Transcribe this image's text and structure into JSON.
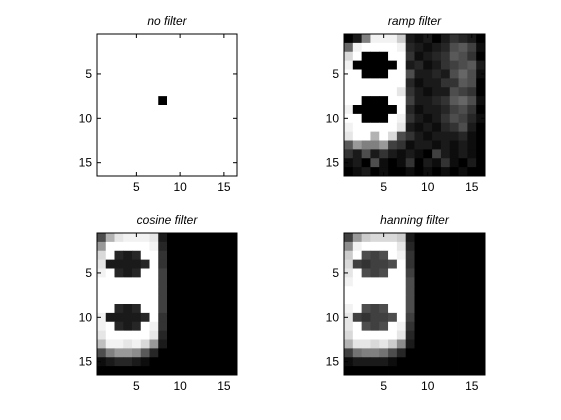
{
  "chart_data": [
    {
      "type": "heatmap",
      "title": "no filter",
      "xticks": [
        "5",
        "10",
        "15"
      ],
      "yticks": [
        "5",
        "10",
        "15"
      ],
      "xlim": [
        0.5,
        16.5
      ],
      "ylim": [
        0.5,
        16.5
      ],
      "colormap": "gray",
      "z": [
        [
          1,
          1,
          1,
          1,
          1,
          1,
          1,
          1,
          1,
          1,
          1,
          1,
          1,
          1,
          1,
          1
        ],
        [
          1,
          1,
          1,
          1,
          1,
          1,
          1,
          1,
          1,
          1,
          1,
          1,
          1,
          1,
          1,
          1
        ],
        [
          1,
          1,
          1,
          1,
          1,
          1,
          1,
          1,
          1,
          1,
          1,
          1,
          1,
          1,
          1,
          1
        ],
        [
          1,
          1,
          1,
          1,
          1,
          1,
          1,
          1,
          1,
          1,
          1,
          1,
          1,
          1,
          1,
          1
        ],
        [
          1,
          1,
          1,
          1,
          1,
          1,
          1,
          1,
          1,
          1,
          1,
          1,
          1,
          1,
          1,
          1
        ],
        [
          1,
          1,
          1,
          1,
          1,
          1,
          1,
          1,
          1,
          1,
          1,
          1,
          1,
          1,
          1,
          1
        ],
        [
          1,
          1,
          1,
          1,
          1,
          1,
          1,
          1,
          1,
          1,
          1,
          1,
          1,
          1,
          1,
          1
        ],
        [
          1,
          1,
          1,
          1,
          1,
          1,
          1,
          0,
          1,
          1,
          1,
          1,
          1,
          1,
          1,
          1
        ],
        [
          1,
          1,
          1,
          1,
          1,
          1,
          1,
          1,
          1,
          1,
          1,
          1,
          1,
          1,
          1,
          1
        ],
        [
          1,
          1,
          1,
          1,
          1,
          1,
          1,
          1,
          1,
          1,
          1,
          1,
          1,
          1,
          1,
          1
        ],
        [
          1,
          1,
          1,
          1,
          1,
          1,
          1,
          1,
          1,
          1,
          1,
          1,
          1,
          1,
          1,
          1
        ],
        [
          1,
          1,
          1,
          1,
          1,
          1,
          1,
          1,
          1,
          1,
          1,
          1,
          1,
          1,
          1,
          1
        ],
        [
          1,
          1,
          1,
          1,
          1,
          1,
          1,
          1,
          1,
          1,
          1,
          1,
          1,
          1,
          1,
          1
        ],
        [
          1,
          1,
          1,
          1,
          1,
          1,
          1,
          1,
          1,
          1,
          1,
          1,
          1,
          1,
          1,
          1
        ],
        [
          1,
          1,
          1,
          1,
          1,
          1,
          1,
          1,
          1,
          1,
          1,
          1,
          1,
          1,
          1,
          1
        ],
        [
          1,
          1,
          1,
          1,
          1,
          1,
          1,
          1,
          1,
          1,
          1,
          1,
          1,
          1,
          1,
          1
        ]
      ]
    },
    {
      "type": "heatmap",
      "title": "ramp filter",
      "xticks": [
        "5",
        "10",
        "15"
      ],
      "yticks": [
        "5",
        "10",
        "15"
      ],
      "xlim": [
        0.5,
        16.5
      ],
      "ylim": [
        0.5,
        16.5
      ],
      "colormap": "gray",
      "z": [
        [
          0.0,
          0.1,
          0.5,
          0.95,
          0.95,
          0.95,
          0.8,
          0.1,
          0.05,
          0.1,
          0.0,
          0.1,
          0.2,
          0.15,
          0.1,
          0.0
        ],
        [
          0.4,
          0.95,
          1,
          1,
          1,
          1,
          0.95,
          0.15,
          0.1,
          0.05,
          0.1,
          0.15,
          0.3,
          0.35,
          0.25,
          0.05
        ],
        [
          0.85,
          1,
          0,
          0,
          0,
          1,
          1,
          0.2,
          0.05,
          0.1,
          0.15,
          0.2,
          0.35,
          0.3,
          0.2,
          0.0
        ],
        [
          0.95,
          0,
          0,
          0,
          0,
          0,
          1,
          0.1,
          0.15,
          0.05,
          0.1,
          0.2,
          0.25,
          0.3,
          0.35,
          0.1
        ],
        [
          1,
          1,
          0,
          0,
          0,
          1,
          1,
          0.3,
          0.1,
          0.1,
          0.15,
          0.1,
          0.3,
          0.4,
          0.3,
          0.05
        ],
        [
          1,
          1,
          1,
          1,
          1,
          1,
          1,
          0.15,
          0.05,
          0.1,
          0.1,
          0.2,
          0.2,
          0.35,
          0.3,
          0.0
        ],
        [
          1,
          1,
          1,
          1,
          1,
          1,
          0.9,
          0.2,
          0.1,
          0.05,
          0.1,
          0.1,
          0.3,
          0.25,
          0.2,
          0.0
        ],
        [
          1,
          1,
          0,
          0,
          0,
          1,
          1,
          0.25,
          0.1,
          0.1,
          0.15,
          0.2,
          0.35,
          0.4,
          0.3,
          0.05
        ],
        [
          0.95,
          0,
          0,
          0,
          0,
          0,
          1,
          0.15,
          0.05,
          0.1,
          0.1,
          0.15,
          0.25,
          0.3,
          0.2,
          0.0
        ],
        [
          1,
          1,
          0,
          0,
          0,
          1,
          0.95,
          0.2,
          0.1,
          0.05,
          0.1,
          0.2,
          0.3,
          0.25,
          0.15,
          0.05
        ],
        [
          0.95,
          1,
          1,
          1,
          1,
          1,
          0.9,
          0.1,
          0.05,
          0.1,
          0.05,
          0.15,
          0.2,
          0.3,
          0.1,
          0.0
        ],
        [
          0.9,
          1,
          1,
          0.7,
          1,
          0.85,
          0.3,
          0.2,
          0.1,
          0.05,
          0.1,
          0.1,
          0.1,
          0.15,
          0.05,
          0.0
        ],
        [
          0.35,
          0.6,
          0.5,
          0.5,
          0.6,
          0.25,
          0.2,
          0.05,
          0.1,
          0.1,
          0.05,
          0.1,
          0.05,
          0.1,
          0.05,
          0.0
        ],
        [
          0.2,
          0.1,
          0.3,
          0.1,
          0.2,
          0.1,
          0.05,
          0.1,
          0.05,
          0.0,
          0.25,
          0.1,
          0.05,
          0.1,
          0.05,
          0.0
        ],
        [
          0.05,
          0.1,
          0.0,
          0.3,
          0.05,
          0.0,
          0.05,
          0.2,
          0.0,
          0.1,
          0.05,
          0.2,
          0.05,
          0.0,
          0.1,
          0.0
        ],
        [
          0.0,
          0.05,
          0.1,
          0.0,
          0.05,
          0.0,
          0.0,
          0.05,
          0.0,
          0.05,
          0.0,
          0.05,
          0.0,
          0.05,
          0.0,
          0.0
        ]
      ]
    },
    {
      "type": "heatmap",
      "title": "cosine filter",
      "xticks": [
        "5",
        "10",
        "15"
      ],
      "yticks": [
        "5",
        "10",
        "15"
      ],
      "xlim": [
        0.5,
        16.5
      ],
      "ylim": [
        0.5,
        16.5
      ],
      "colormap": "gray",
      "z": [
        [
          0.3,
          0.7,
          0.9,
          0.95,
          0.95,
          0.95,
          0.9,
          0.1,
          0,
          0,
          0,
          0,
          0,
          0,
          0,
          0
        ],
        [
          0.6,
          1,
          1,
          1,
          1,
          1,
          0.95,
          0.15,
          0,
          0,
          0,
          0,
          0,
          0,
          0,
          0
        ],
        [
          0.85,
          1,
          0.15,
          0.1,
          0.15,
          1,
          1,
          0.2,
          0,
          0,
          0,
          0,
          0,
          0,
          0,
          0
        ],
        [
          0.9,
          0.1,
          0.1,
          0.1,
          0.1,
          0.15,
          1,
          0.2,
          0,
          0,
          0,
          0,
          0,
          0,
          0,
          0
        ],
        [
          0.95,
          1,
          0.15,
          0.1,
          0.15,
          1,
          1,
          0.25,
          0,
          0,
          0,
          0,
          0,
          0,
          0,
          0
        ],
        [
          1,
          1,
          1,
          1,
          1,
          1,
          1,
          0.25,
          0,
          0,
          0,
          0,
          0,
          0,
          0,
          0
        ],
        [
          1,
          1,
          1,
          1,
          1,
          1,
          1,
          0.25,
          0,
          0,
          0,
          0,
          0,
          0,
          0,
          0
        ],
        [
          1,
          1,
          1,
          1,
          1,
          1,
          1,
          0.25,
          0,
          0,
          0,
          0,
          0,
          0,
          0,
          0
        ],
        [
          1,
          1,
          0.15,
          0.1,
          0.15,
          1,
          1,
          0.25,
          0,
          0,
          0,
          0,
          0,
          0,
          0,
          0
        ],
        [
          0.95,
          0.1,
          0.1,
          0.1,
          0.1,
          0.15,
          1,
          0.2,
          0,
          0,
          0,
          0,
          0,
          0,
          0,
          0
        ],
        [
          0.95,
          1,
          0.15,
          0.1,
          0.15,
          1,
          0.95,
          0.2,
          0,
          0,
          0,
          0,
          0,
          0,
          0,
          0
        ],
        [
          0.9,
          1,
          1,
          1,
          1,
          1,
          0.9,
          0.15,
          0,
          0,
          0,
          0,
          0,
          0,
          0,
          0
        ],
        [
          0.75,
          0.95,
          0.95,
          0.9,
          0.95,
          0.85,
          0.6,
          0.1,
          0,
          0,
          0,
          0,
          0,
          0,
          0,
          0
        ],
        [
          0.3,
          0.5,
          0.6,
          0.6,
          0.55,
          0.35,
          0.15,
          0,
          0,
          0,
          0,
          0,
          0,
          0,
          0,
          0
        ],
        [
          0.05,
          0.1,
          0.15,
          0.15,
          0.1,
          0.05,
          0,
          0,
          0,
          0,
          0,
          0,
          0,
          0,
          0,
          0
        ],
        [
          0,
          0,
          0,
          0,
          0,
          0,
          0,
          0,
          0,
          0,
          0,
          0,
          0,
          0,
          0,
          0
        ]
      ]
    },
    {
      "type": "heatmap",
      "title": "hanning filter",
      "xticks": [
        "5",
        "10",
        "15"
      ],
      "yticks": [
        "5",
        "10",
        "15"
      ],
      "xlim": [
        0.5,
        16.5
      ],
      "ylim": [
        0.5,
        16.5
      ],
      "colormap": "gray",
      "z": [
        [
          0.25,
          0.6,
          0.8,
          0.85,
          0.85,
          0.85,
          0.8,
          0.1,
          0,
          0,
          0,
          0,
          0,
          0,
          0,
          0
        ],
        [
          0.55,
          0.95,
          1,
          1,
          1,
          1,
          0.9,
          0.15,
          0,
          0,
          0,
          0,
          0,
          0,
          0,
          0
        ],
        [
          0.8,
          1,
          0.3,
          0.25,
          0.3,
          1,
          0.95,
          0.2,
          0,
          0,
          0,
          0,
          0,
          0,
          0,
          0
        ],
        [
          0.85,
          0.25,
          0.2,
          0.25,
          0.25,
          0.3,
          1,
          0.2,
          0,
          0,
          0,
          0,
          0,
          0,
          0,
          0
        ],
        [
          0.9,
          1,
          0.3,
          0.25,
          0.3,
          1,
          1,
          0.25,
          0,
          0,
          0,
          0,
          0,
          0,
          0,
          0
        ],
        [
          0.95,
          1,
          1,
          1,
          1,
          1,
          1,
          0.3,
          0,
          0,
          0,
          0,
          0,
          0,
          0,
          0
        ],
        [
          1,
          1,
          1,
          1,
          1,
          1,
          1,
          0.3,
          0,
          0,
          0,
          0,
          0,
          0,
          0,
          0
        ],
        [
          1,
          1,
          1,
          1,
          1,
          1,
          1,
          0.3,
          0,
          0,
          0,
          0,
          0,
          0,
          0,
          0
        ],
        [
          0.95,
          1,
          0.3,
          0.25,
          0.3,
          1,
          1,
          0.3,
          0,
          0,
          0,
          0,
          0,
          0,
          0,
          0
        ],
        [
          0.9,
          0.25,
          0.2,
          0.25,
          0.25,
          0.3,
          1,
          0.25,
          0,
          0,
          0,
          0,
          0,
          0,
          0,
          0
        ],
        [
          0.9,
          1,
          0.3,
          0.25,
          0.3,
          1,
          0.95,
          0.2,
          0,
          0,
          0,
          0,
          0,
          0,
          0,
          0
        ],
        [
          0.85,
          1,
          1,
          1,
          1,
          1,
          0.9,
          0.15,
          0,
          0,
          0,
          0,
          0,
          0,
          0,
          0
        ],
        [
          0.7,
          0.9,
          0.9,
          0.85,
          0.9,
          0.8,
          0.55,
          0.1,
          0,
          0,
          0,
          0,
          0,
          0,
          0,
          0
        ],
        [
          0.25,
          0.45,
          0.5,
          0.5,
          0.45,
          0.3,
          0.15,
          0,
          0,
          0,
          0,
          0,
          0,
          0,
          0,
          0
        ],
        [
          0.05,
          0.1,
          0.1,
          0.1,
          0.1,
          0.05,
          0,
          0,
          0,
          0,
          0,
          0,
          0,
          0,
          0,
          0
        ],
        [
          0,
          0,
          0,
          0,
          0,
          0,
          0,
          0,
          0,
          0,
          0,
          0,
          0,
          0,
          0,
          0
        ]
      ]
    }
  ]
}
